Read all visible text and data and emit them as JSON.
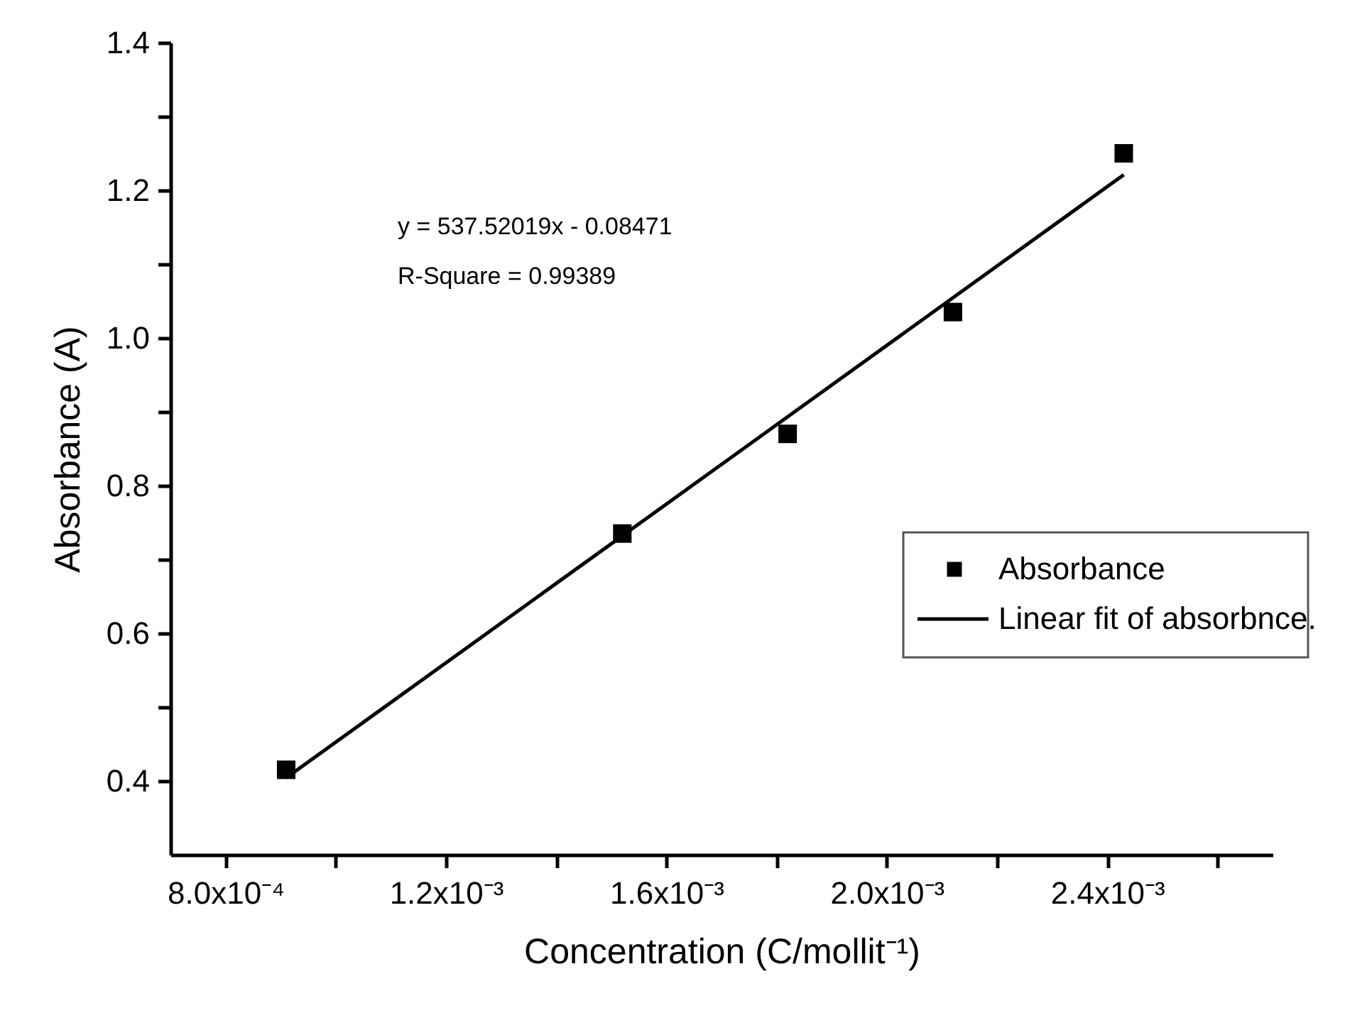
{
  "chart_data": {
    "type": "scatter",
    "xlabel": "Concentration (C/mollit⁻¹)",
    "ylabel": "Absorbance (A)",
    "x": [
      0.00091,
      0.00152,
      0.00182,
      0.00212,
      0.00243
    ],
    "series": [
      {
        "name": "Absorbance",
        "color": "#000000",
        "marker": "square",
        "values": [
          0.415,
          0.735,
          0.87,
          1.035,
          1.25
        ]
      },
      {
        "name": "Linear fit of absorbnce.",
        "type": "line",
        "color": "#000000",
        "marker": "none",
        "line_style": "solid",
        "x": [
          0.00091,
          0.00243
        ],
        "values": [
          0.404,
          1.221
        ]
      }
    ],
    "xlim": [
      0.0007,
      0.0027
    ],
    "xticks": [
      {
        "value": 0.0008,
        "label": "8.0x10⁻⁴"
      },
      {
        "value": 0.001,
        "label": null
      },
      {
        "value": 0.0012,
        "label": "1.2x10⁻³"
      },
      {
        "value": 0.0014,
        "label": null
      },
      {
        "value": 0.0016,
        "label": "1.6x10⁻³"
      },
      {
        "value": 0.0018,
        "label": null
      },
      {
        "value": 0.002,
        "label": "2.0x10⁻³"
      },
      {
        "value": 0.0022,
        "label": null
      },
      {
        "value": 0.0024,
        "label": "2.4x10⁻³"
      },
      {
        "value": 0.0026,
        "label": null
      }
    ],
    "ylim": [
      0.3,
      1.4
    ],
    "yticks": [
      {
        "value": 0.4,
        "label": "0.4"
      },
      {
        "value": 0.5,
        "label": null
      },
      {
        "value": 0.6,
        "label": "0.6"
      },
      {
        "value": 0.7,
        "label": null
      },
      {
        "value": 0.8,
        "label": "0.8"
      },
      {
        "value": 0.9,
        "label": null
      },
      {
        "value": 1.0,
        "label": "1.0"
      },
      {
        "value": 1.1,
        "label": null
      },
      {
        "value": 1.2,
        "label": "1.2"
      },
      {
        "value": 1.3,
        "label": null
      },
      {
        "value": 1.4,
        "label": "1.4"
      }
    ],
    "annotations": [
      "y = 537.52019x - 0.08471",
      "R-Square = 0.99389"
    ],
    "legend": "right",
    "grid": false
  }
}
